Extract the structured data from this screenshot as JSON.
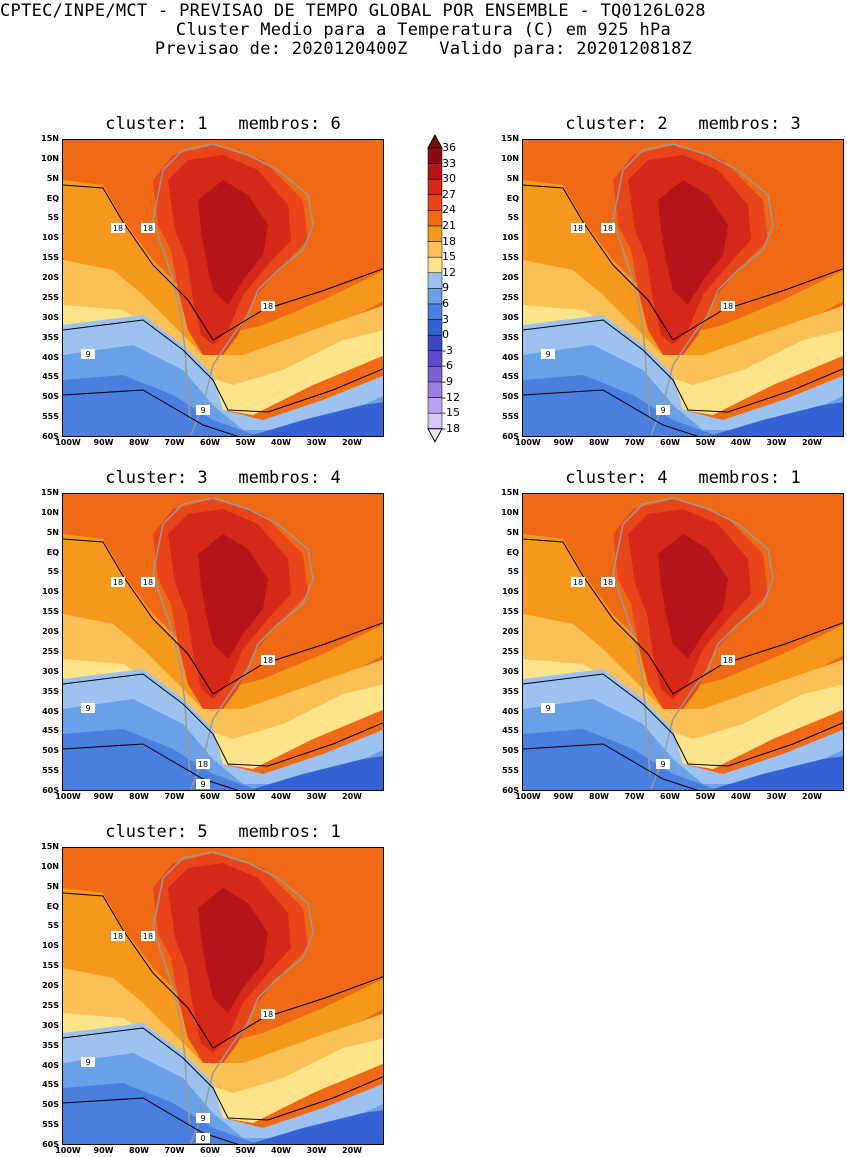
{
  "header": {
    "line1": "CPTEC/INPE/MCT - PREVISAO DE TEMPO GLOBAL POR ENSEMBLE - TQ0126L028",
    "line2": "Cluster Medio para a Temperatura (C) em 925 hPa",
    "line3": "Previsao de: 2020120400Z   Valido para: 2020120818Z"
  },
  "axes": {
    "lat_labels": [
      "15N",
      "10N",
      "5N",
      "EQ",
      "5S",
      "10S",
      "15S",
      "20S",
      "25S",
      "30S",
      "35S",
      "40S",
      "45S",
      "50S",
      "55S",
      "60S"
    ],
    "lon_labels": [
      "100W",
      "90W",
      "80W",
      "70W",
      "60W",
      "50W",
      "40W",
      "30W",
      "20W"
    ]
  },
  "colorbar": {
    "levels": [
      "36",
      "33",
      "30",
      "27",
      "24",
      "21",
      "18",
      "15",
      "12",
      "9",
      "6",
      "3",
      "0",
      "-3",
      "-6",
      "-9",
      "-12",
      "-15",
      "-18"
    ],
    "colors": [
      "#8b0a14",
      "#b51419",
      "#d52818",
      "#e8461a",
      "#f06a16",
      "#f6981c",
      "#fbc156",
      "#fde38a",
      "#9cc2ef",
      "#6aa0e8",
      "#4a7fdf",
      "#3461d4",
      "#3a46c2",
      "#5a4bc8",
      "#7a62d3",
      "#9a7fde",
      "#b8a1e8",
      "#d5c6f3"
    ],
    "top_color": "#7a0810",
    "bottom_color": "#ece3fa"
  },
  "panels": [
    {
      "title": "cluster: 1   membros: 6",
      "contour_labels": [
        "18",
        "18",
        "18",
        "9",
        "9"
      ]
    },
    {
      "title": "cluster: 2   membros: 3",
      "contour_labels": [
        "18",
        "18",
        "18",
        "9",
        "9"
      ]
    },
    {
      "title": "cluster: 3   membros: 4",
      "contour_labels": [
        "18",
        "18",
        "18",
        "9",
        "18",
        "9"
      ]
    },
    {
      "title": "cluster: 4   membros: 1",
      "contour_labels": [
        "18",
        "18",
        "18",
        "9",
        "9"
      ]
    },
    {
      "title": "cluster: 5   membros: 1",
      "contour_labels": [
        "18",
        "18",
        "18",
        "9",
        "9",
        "0"
      ]
    }
  ]
}
